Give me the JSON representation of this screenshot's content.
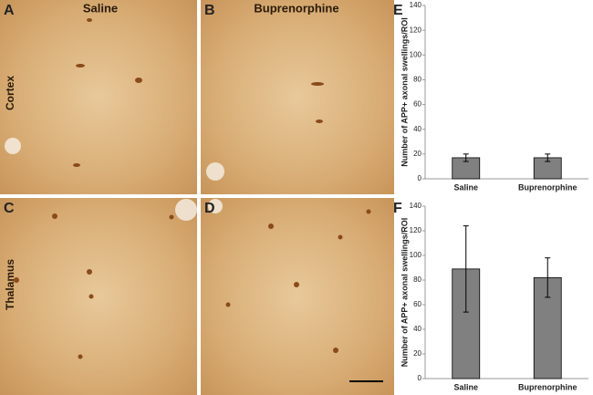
{
  "panel_labels": [
    "A",
    "B",
    "C",
    "D",
    "E",
    "F"
  ],
  "column_labels": [
    "Saline",
    "Buprenorphine"
  ],
  "row_labels": [
    "Cortex",
    "Thalamus"
  ],
  "chart_data": [
    {
      "type": "bar",
      "categories": [
        "Saline",
        "Buprenorphine"
      ],
      "values": [
        17,
        17
      ],
      "errors": [
        3,
        3
      ],
      "color": "#808080",
      "y_label": "Number of APP+ axonal swellings/ROI",
      "ylim": [
        0,
        140
      ],
      "yticks": [
        0,
        20,
        40,
        60,
        80,
        100,
        120,
        140
      ]
    },
    {
      "type": "bar",
      "categories": [
        "Saline",
        "Buprenorphine"
      ],
      "values": [
        89,
        82
      ],
      "errors": [
        35,
        16
      ],
      "color": "#808080",
      "y_label": "Number of APP+ axonal swellings/ROI",
      "ylim": [
        0,
        140
      ],
      "yticks": [
        0,
        20,
        40,
        60,
        80,
        100,
        120,
        140
      ]
    }
  ]
}
